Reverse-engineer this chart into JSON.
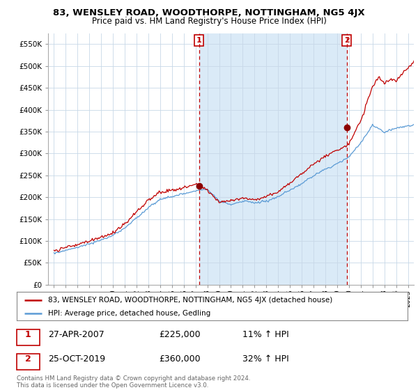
{
  "title": "83, WENSLEY ROAD, WOODTHORPE, NOTTINGHAM, NG5 4JX",
  "subtitle": "Price paid vs. HM Land Registry's House Price Index (HPI)",
  "legend_line1": "83, WENSLEY ROAD, WOODTHORPE, NOTTINGHAM, NG5 4JX (detached house)",
  "legend_line2": "HPI: Average price, detached house, Gedling",
  "footer": "Contains HM Land Registry data © Crown copyright and database right 2024.\nThis data is licensed under the Open Government Licence v3.0.",
  "sale1_label": "1",
  "sale1_date": "27-APR-2007",
  "sale1_price": "£225,000",
  "sale1_hpi": "11% ↑ HPI",
  "sale1_x": 2007.3,
  "sale1_y": 225000,
  "sale2_label": "2",
  "sale2_date": "25-OCT-2019",
  "sale2_price": "£360,000",
  "sale2_hpi": "32% ↑ HPI",
  "sale2_x": 2019.81,
  "sale2_y": 360000,
  "hpi_color": "#5b9bd5",
  "price_color": "#c00000",
  "marker_color": "#8b0000",
  "fill_color": "#daeaf7",
  "ylim_min": 0,
  "ylim_max": 575000,
  "yticks": [
    0,
    50000,
    100000,
    150000,
    200000,
    250000,
    300000,
    350000,
    400000,
    450000,
    500000,
    550000
  ],
  "xlim_min": 1994.5,
  "xlim_max": 2025.5,
  "background_color": "#ffffff",
  "grid_color": "#c8d8e8"
}
